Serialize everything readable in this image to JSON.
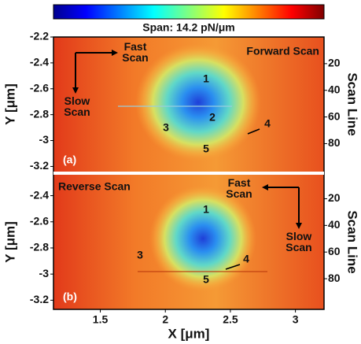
{
  "colorbar_label": "Span: 14.2 pN/μm",
  "chart_data": [
    {
      "type": "heatmap",
      "panel_label": "(a)",
      "scan_label": "Forward Scan",
      "fast_label": "Fast Scan",
      "slow_label": "Slow Scan",
      "ylabel": "Y [μm]",
      "y2label": "Scan Line",
      "xlim": [
        1.14,
        3.22
      ],
      "ylim": [
        -3.24,
        -2.2
      ],
      "yticks": [
        -2.2,
        -2.4,
        -2.6,
        -2.8,
        -3,
        -3.2
      ],
      "y2lim": [
        101,
        0
      ],
      "y2ticks": [
        20,
        40,
        60,
        80
      ],
      "annotations": [
        "1",
        "2",
        "3",
        "4",
        "5"
      ]
    },
    {
      "type": "heatmap",
      "panel_label": "(b)",
      "scan_label": "Reverse Scan",
      "fast_label": "Fast Scan",
      "slow_label": "Slow Scan",
      "ylabel": "Y [μm]",
      "y2label": "Scan Line",
      "xlabel": "X [μm]",
      "xlim": [
        1.14,
        3.22
      ],
      "xticks": [
        1.5,
        2,
        2.5,
        3
      ],
      "ylim": [
        -3.27,
        -2.24
      ],
      "yticks": [
        -2.4,
        -2.6,
        -2.8,
        -3,
        -3.2
      ],
      "y2lim": [
        103,
        2
      ],
      "y2ticks": [
        20,
        40,
        60,
        80
      ],
      "annotations": [
        "1",
        "3",
        "4",
        "5"
      ]
    }
  ]
}
